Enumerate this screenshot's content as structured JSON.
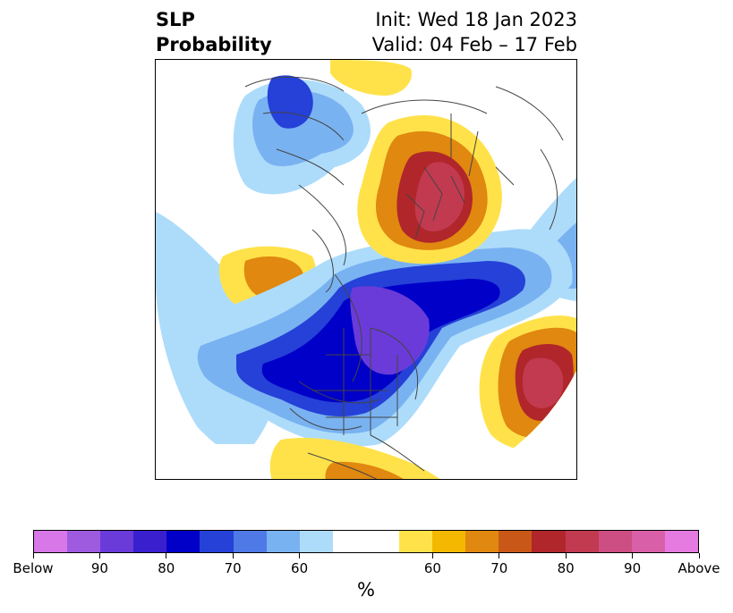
{
  "title": {
    "left_line1": "SLP",
    "left_line2": "Probability",
    "right_line1": "Init: Wed 18 Jan 2023",
    "right_line2": "Valid: 04 Feb – 17 Feb"
  },
  "colorbar": {
    "units": "%",
    "colors": [
      "#d877e8",
      "#9e5be0",
      "#6a3bd8",
      "#3a1fcf",
      "#0000c8",
      "#2541d8",
      "#4e79e6",
      "#79b2f1",
      "#addcfb",
      "#ffffff",
      "#ffffff",
      "#ffe24a",
      "#f4b800",
      "#e0880f",
      "#c95818",
      "#b0262a",
      "#c23a50",
      "#cc4e82",
      "#d960a8",
      "#e57ae0"
    ],
    "tick_labels": [
      "Below",
      "90",
      "80",
      "70",
      "60",
      "60",
      "70",
      "80",
      "90",
      "Above"
    ]
  },
  "map": {
    "color_below_60": "#addcfb",
    "color_below_70": "#79b2f1",
    "color_below_80": "#2541d8",
    "color_below_90": "#0000c8",
    "color_below_max": "#6a3bd8",
    "color_above_60": "#ffe24a",
    "color_above_70": "#e0880f",
    "color_above_80": "#b0262a",
    "color_above_max": "#c23a50",
    "outline_color": "#444444"
  }
}
